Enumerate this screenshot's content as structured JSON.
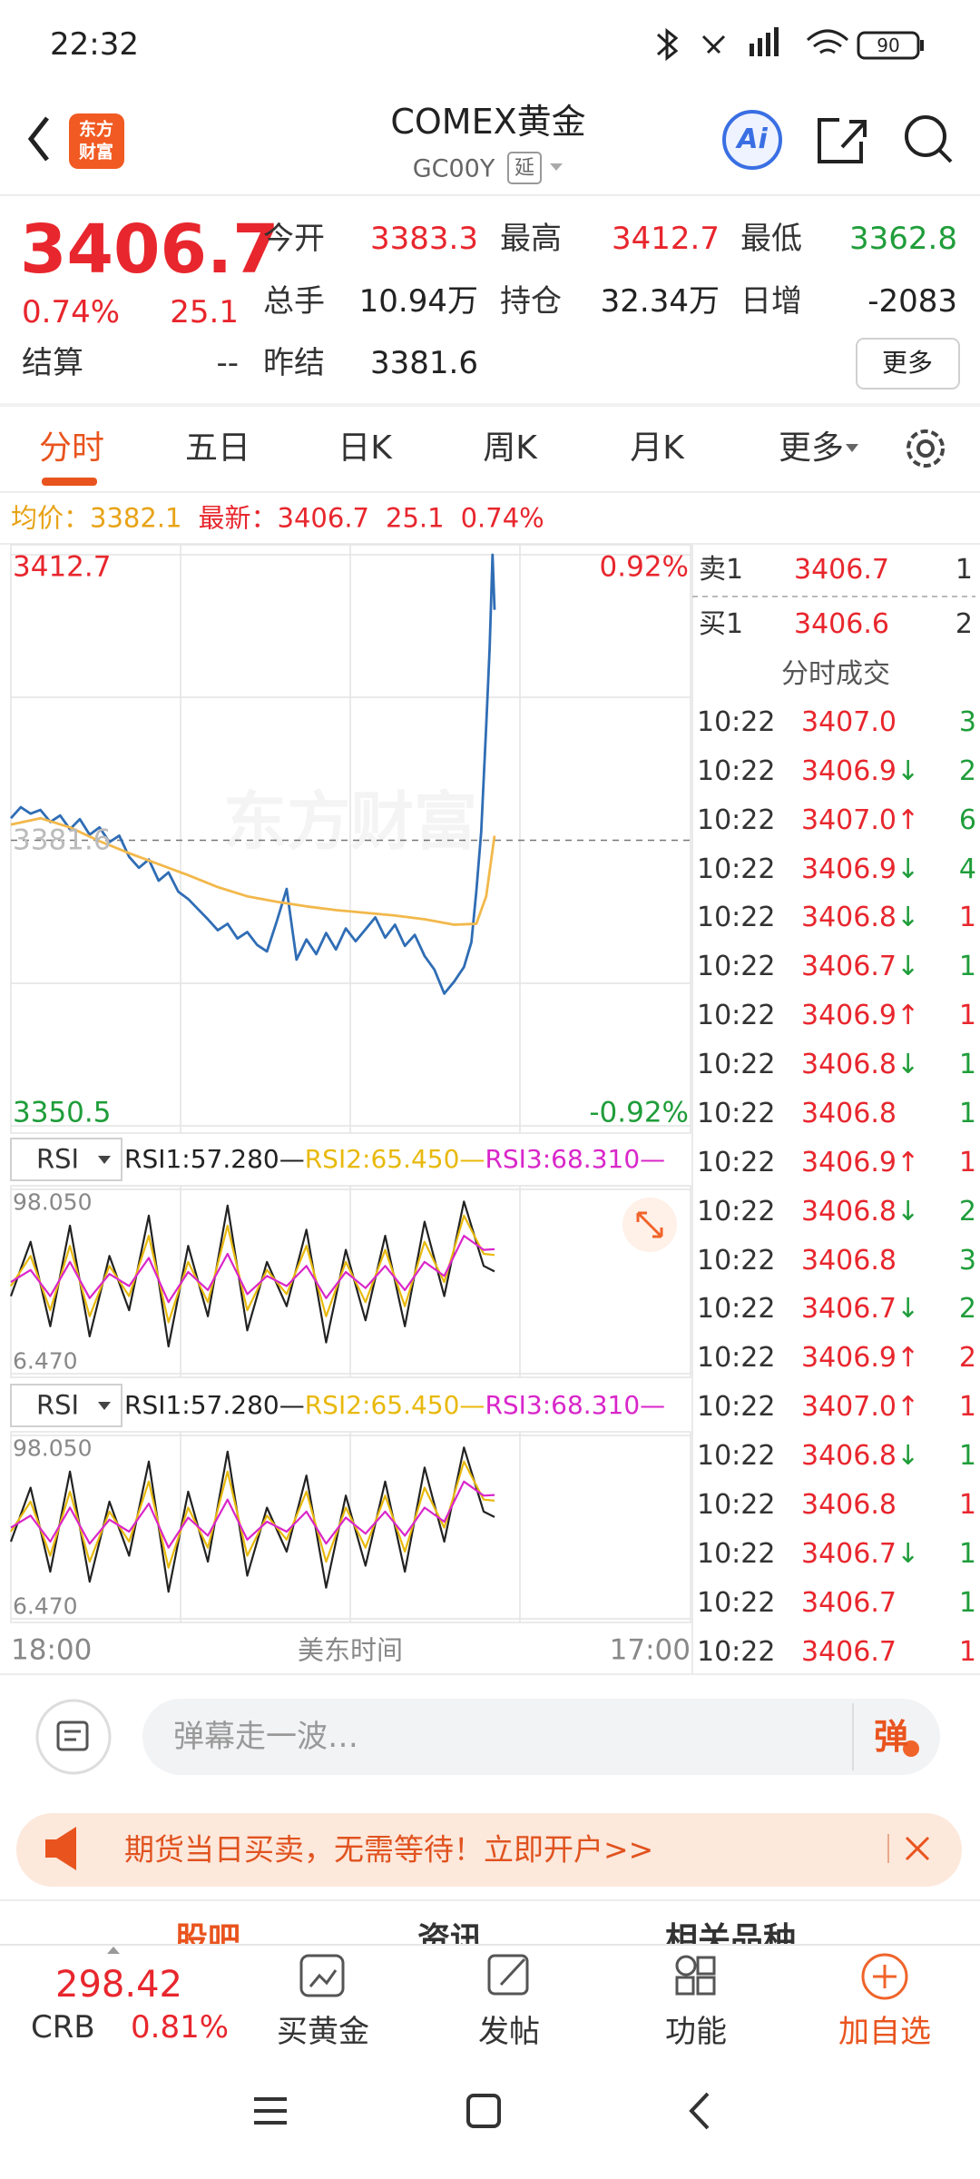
{
  "status_bar": {
    "time": "22:32",
    "battery": "90"
  },
  "header": {
    "logo": [
      "东方",
      "财富"
    ],
    "title": "COMEX黄金",
    "code": "GC00Y",
    "delay": "延",
    "ai": "Ai"
  },
  "quote": {
    "price": "3406.7",
    "change_pct": "0.74%",
    "change": "25.1",
    "settle_label": "结算",
    "settle": "--",
    "fields": [
      [
        {
          "label": "今开",
          "value": "3383.3",
          "color": "#e8262d"
        },
        {
          "label": "最高",
          "value": "3412.7",
          "color": "#e8262d"
        },
        {
          "label": "最低",
          "value": "3362.8",
          "color": "#1f9d3a"
        }
      ],
      [
        {
          "label": "总手",
          "value": "10.94万",
          "color": "#222222"
        },
        {
          "label": "持仓",
          "value": "32.34万",
          "color": "#222222"
        },
        {
          "label": "日增",
          "value": "-2083",
          "color": "#222222"
        }
      ],
      [
        {
          "label": "昨结",
          "value": "3381.6",
          "color": "#222222"
        }
      ]
    ],
    "more": "更多"
  },
  "tabs": [
    "分时",
    "五日",
    "日K",
    "周K",
    "月K",
    "更多"
  ],
  "active_tab": 0,
  "summary": {
    "avg_label": "均价：",
    "avg": "3382.1",
    "last_label": "最新：",
    "last": "3406.7",
    "change": "25.1",
    "change_pct": "0.74%"
  },
  "chart_data": [
    {
      "type": "line",
      "watermark": "东方财富",
      "xlim": [
        "18:00",
        "17:00"
      ],
      "xticks": [
        "18:00",
        "17:00"
      ],
      "x_label": "美东时间",
      "ylim": [
        3350.5,
        3412.7
      ],
      "yticks": [
        3412.7,
        3381.6,
        3350.5
      ],
      "y2lim": [
        -0.92,
        0.92
      ],
      "y2ticks": [
        {
          "value": 0.92,
          "label": "0.92%"
        },
        {
          "value": -0.92,
          "label": "-0.92%"
        }
      ],
      "series": [
        {
          "color": "#2f6db5",
          "x": [
            "18:00",
            "18:20",
            "18:40",
            "19:00",
            "19:20",
            "19:40",
            "20:00",
            "20:20",
            "20:40",
            "21:00",
            "21:20",
            "21:40",
            "22:00",
            "22:20",
            "22:40",
            "23:00",
            "23:20",
            "23:40",
            "00:00",
            "00:20",
            "00:40",
            "01:00",
            "01:20",
            "01:40",
            "02:00",
            "02:20",
            "02:40",
            "03:00",
            "03:20",
            "03:40",
            "04:00",
            "04:20",
            "04:40",
            "05:00",
            "05:20",
            "05:40",
            "06:00",
            "06:20",
            "06:40",
            "07:00",
            "07:20",
            "07:40",
            "08:00",
            "08:20",
            "08:40",
            "09:00",
            "09:20",
            "09:35",
            "09:45",
            "09:55",
            "10:05",
            "10:12",
            "10:18",
            "10:22"
          ],
          "values": [
            3384.0,
            3385.2,
            3384.5,
            3384.9,
            3383.6,
            3384.3,
            3382.8,
            3383.9,
            3382.2,
            3383.0,
            3381.4,
            3382.1,
            3379.8,
            3378.6,
            3379.5,
            3377.2,
            3378.1,
            3376.0,
            3375.2,
            3374.1,
            3373.0,
            3371.8,
            3372.5,
            3370.9,
            3371.6,
            3370.2,
            3369.5,
            3372.8,
            3376.3,
            3368.6,
            3370.8,
            3369.2,
            3371.5,
            3369.7,
            3372.0,
            3370.6,
            3371.9,
            3373.2,
            3371.0,
            3372.4,
            3370.1,
            3371.3,
            3369.0,
            3367.5,
            3364.9,
            3366.2,
            3367.8,
            3370.5,
            3376.0,
            3382.5,
            3394.0,
            3402.5,
            3412.7,
            3406.7
          ]
        },
        {
          "color": "#f2b84b",
          "x": [
            "18:00",
            "19:00",
            "20:00",
            "21:00",
            "22:00",
            "23:00",
            "00:00",
            "01:00",
            "02:00",
            "03:00",
            "04:00",
            "05:00",
            "06:00",
            "07:00",
            "08:00",
            "09:00",
            "09:45",
            "10:05",
            "10:22"
          ],
          "values": [
            3383.3,
            3384.0,
            3383.0,
            3381.5,
            3380.2,
            3379.0,
            3377.8,
            3376.5,
            3375.5,
            3374.9,
            3374.4,
            3374.0,
            3373.7,
            3373.4,
            3373.0,
            3372.4,
            3372.5,
            3375.5,
            3382.1
          ]
        }
      ]
    },
    {
      "type": "line",
      "selector": "RSI",
      "xlim": [
        "18:00",
        "17:00"
      ],
      "x": [
        "18:00",
        "18:40",
        "19:20",
        "20:00",
        "20:40",
        "21:20",
        "22:00",
        "22:40",
        "23:20",
        "00:00",
        "00:40",
        "01:20",
        "02:00",
        "02:40",
        "03:20",
        "04:00",
        "04:40",
        "05:20",
        "06:00",
        "06:40",
        "07:20",
        "08:00",
        "08:40",
        "09:20",
        "10:00",
        "10:22"
      ],
      "ylim": [
        6.47,
        98.05
      ],
      "yticks": [
        {
          "value": 98.05,
          "label": "98.050"
        },
        {
          "value": 6.47,
          "label": "6.470"
        }
      ],
      "series": [
        {
          "name": "RSI1:57.280—",
          "color": "#222222",
          "values": [
            45,
            72,
            30,
            80,
            25,
            65,
            38,
            85,
            20,
            70,
            35,
            90,
            28,
            62,
            40,
            78,
            22,
            68,
            33,
            75,
            30,
            82,
            45,
            92,
            60,
            57.28
          ]
        },
        {
          "name": "RSI2:65.450—",
          "color": "#e8b90c",
          "values": [
            50,
            65,
            38,
            70,
            35,
            60,
            45,
            75,
            32,
            62,
            42,
            80,
            38,
            58,
            46,
            70,
            35,
            62,
            42,
            68,
            40,
            72,
            52,
            85,
            66,
            65.45
          ]
        },
        {
          "name": "RSI3:68.310—",
          "color": "#d926c9",
          "values": [
            52,
            58,
            45,
            62,
            44,
            56,
            50,
            64,
            42,
            57,
            48,
            66,
            46,
            55,
            50,
            60,
            44,
            57,
            49,
            60,
            48,
            62,
            55,
            75,
            68,
            68.31
          ]
        }
      ]
    },
    {
      "type": "line",
      "selector": "RSI",
      "xlim": [
        "18:00",
        "17:00"
      ],
      "x": [
        "18:00",
        "18:40",
        "19:20",
        "20:00",
        "20:40",
        "21:20",
        "22:00",
        "22:40",
        "23:20",
        "00:00",
        "00:40",
        "01:20",
        "02:00",
        "02:40",
        "03:20",
        "04:00",
        "04:40",
        "05:20",
        "06:00",
        "06:40",
        "07:20",
        "08:00",
        "08:40",
        "09:20",
        "10:00",
        "10:22"
      ],
      "ylim": [
        6.47,
        98.05
      ],
      "yticks": [
        {
          "value": 98.05,
          "label": "98.050"
        },
        {
          "value": 6.47,
          "label": "6.470"
        }
      ],
      "series": [
        {
          "name": "RSI1:57.280—",
          "color": "#222222",
          "values": [
            45,
            72,
            30,
            80,
            25,
            65,
            38,
            85,
            20,
            70,
            35,
            90,
            28,
            62,
            40,
            78,
            22,
            68,
            33,
            75,
            30,
            82,
            45,
            92,
            60,
            57.28
          ]
        },
        {
          "name": "RSI2:65.450—",
          "color": "#e8b90c",
          "values": [
            50,
            65,
            38,
            70,
            35,
            60,
            45,
            75,
            32,
            62,
            42,
            80,
            38,
            58,
            46,
            70,
            35,
            62,
            42,
            68,
            40,
            72,
            52,
            85,
            66,
            65.45
          ]
        },
        {
          "name": "RSI3:68.310—",
          "color": "#d926c9",
          "values": [
            52,
            58,
            45,
            62,
            44,
            56,
            50,
            64,
            42,
            57,
            48,
            66,
            46,
            55,
            50,
            60,
            44,
            57,
            49,
            60,
            48,
            62,
            55,
            75,
            68,
            68.31
          ]
        }
      ]
    }
  ],
  "order_book": [
    {
      "side": "卖1",
      "price": "3406.7",
      "volume": "1"
    },
    {
      "side": "买1",
      "price": "3406.6",
      "volume": "2"
    }
  ],
  "trades_title": "分时成交",
  "trades": [
    {
      "time": "10:22",
      "price": "3407.0",
      "volume": "3",
      "volume_color": "#1f9d3a"
    },
    {
      "time": "10:22",
      "price": "3406.9",
      "arrow": "↓",
      "volume": "2",
      "volume_color": "#1f9d3a"
    },
    {
      "time": "10:22",
      "price": "3407.0",
      "arrow": "↑",
      "volume": "6",
      "volume_color": "#1f9d3a"
    },
    {
      "time": "10:22",
      "price": "3406.9",
      "arrow": "↓",
      "volume": "4",
      "volume_color": "#1f9d3a"
    },
    {
      "time": "10:22",
      "price": "3406.8",
      "arrow": "↓",
      "volume": "1",
      "volume_color": "#e8262d"
    },
    {
      "time": "10:22",
      "price": "3406.7",
      "arrow": "↓",
      "volume": "1",
      "volume_color": "#1f9d3a"
    },
    {
      "time": "10:22",
      "price": "3406.9",
      "arrow": "↑",
      "volume": "1",
      "volume_color": "#e8262d"
    },
    {
      "time": "10:22",
      "price": "3406.8",
      "arrow": "↓",
      "volume": "1",
      "volume_color": "#1f9d3a"
    },
    {
      "time": "10:22",
      "price": "3406.8",
      "volume": "1",
      "volume_color": "#1f9d3a"
    },
    {
      "time": "10:22",
      "price": "3406.9",
      "arrow": "↑",
      "volume": "1",
      "volume_color": "#e8262d"
    },
    {
      "time": "10:22",
      "price": "3406.8",
      "arrow": "↓",
      "volume": "2",
      "volume_color": "#1f9d3a"
    },
    {
      "time": "10:22",
      "price": "3406.8",
      "volume": "3",
      "volume_color": "#1f9d3a"
    },
    {
      "time": "10:22",
      "price": "3406.7",
      "arrow": "↓",
      "volume": "2",
      "volume_color": "#1f9d3a"
    },
    {
      "time": "10:22",
      "price": "3406.9",
      "arrow": "↑",
      "volume": "2",
      "volume_color": "#e8262d"
    },
    {
      "time": "10:22",
      "price": "3407.0",
      "arrow": "↑",
      "volume": "1",
      "volume_color": "#e8262d"
    },
    {
      "time": "10:22",
      "price": "3406.8",
      "arrow": "↓",
      "volume": "1",
      "volume_color": "#1f9d3a"
    },
    {
      "time": "10:22",
      "price": "3406.8",
      "volume": "1",
      "volume_color": "#e8262d"
    },
    {
      "time": "10:22",
      "price": "3406.7",
      "arrow": "↓",
      "volume": "1",
      "volume_color": "#1f9d3a"
    },
    {
      "time": "10:22",
      "price": "3406.7",
      "volume": "1",
      "volume_color": "#1f9d3a"
    },
    {
      "time": "10:22",
      "price": "3406.7",
      "volume": "1",
      "volume_color": "#e8262d"
    }
  ],
  "comment_placeholder": "弹幕走一波…",
  "comment_button": "弹",
  "banner": "期货当日买卖，无需等待！立即开户>>",
  "bottom_tabs": [
    "股吧",
    "资讯",
    "相关品种"
  ],
  "footer": {
    "index_value": "298.42",
    "index_name": "CRB",
    "index_change": "0.81%",
    "actions": [
      "买黄金",
      "发帖",
      "功能",
      "加自选"
    ]
  }
}
